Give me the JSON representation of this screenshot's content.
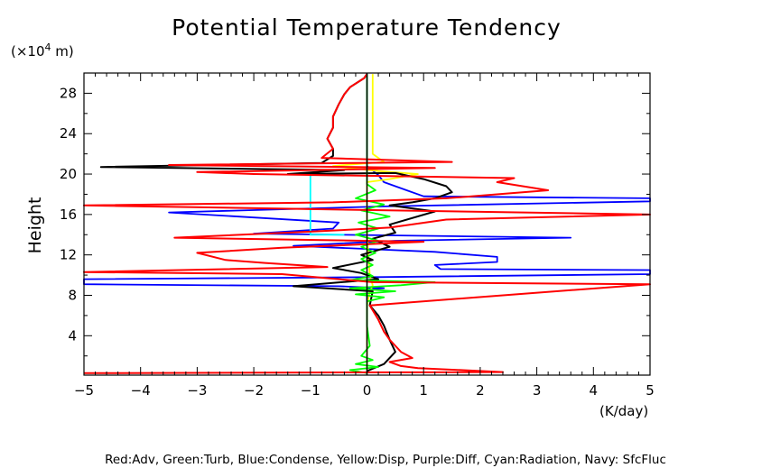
{
  "chart_data": {
    "type": "line",
    "title": "Potential Temperature Tendency",
    "ylabel": "Height",
    "y_unit": "(×10",
    "y_unit_exp": "4",
    "y_unit_tail": " m)",
    "xlabel": "(K/day)",
    "legend_text": "Red:Adv, Green:Turb, Blue:Condense, Yellow:Disp, Purple:Diff, Cyan:Radiation, Navy: SfcFluc",
    "xlim": [
      -5,
      5
    ],
    "ylim": [
      0.1,
      30.0
    ],
    "x_ticks": [
      "−5",
      "−4",
      "−3",
      "−2",
      "−1",
      "0",
      "1",
      "2",
      "3",
      "4",
      "5"
    ],
    "x_tick_values": [
      -5,
      -4,
      -3,
      -2,
      -1,
      0,
      1,
      2,
      3,
      4,
      5
    ],
    "y_ticks": [
      "4",
      "8",
      "12",
      "16",
      "20",
      "24",
      "28"
    ],
    "y_tick_values": [
      4,
      8,
      12,
      16,
      20,
      24,
      28
    ],
    "grid": false,
    "series": [
      {
        "color": "#0000ff",
        "points": [
          [
            0,
            0.3
          ],
          [
            0,
            5
          ],
          [
            0,
            8.6
          ],
          [
            0.3,
            8.7
          ],
          [
            -0.5,
            8.9
          ],
          [
            -5,
            9.1
          ],
          [
            -5,
            9.6
          ],
          [
            0.2,
            9.8
          ],
          [
            5,
            10.1
          ],
          [
            5,
            10.5
          ],
          [
            1.3,
            10.6
          ],
          [
            1.2,
            11.0
          ],
          [
            2.3,
            11.3
          ],
          [
            2.3,
            11.8
          ],
          [
            1.2,
            12.3
          ],
          [
            -1.3,
            12.9
          ],
          [
            0.5,
            13.4
          ],
          [
            3.6,
            13.7
          ],
          [
            -2.0,
            14.1
          ],
          [
            -0.6,
            14.6
          ],
          [
            -0.5,
            15.2
          ],
          [
            -3.5,
            16.2
          ],
          [
            0.3,
            16.8
          ],
          [
            5,
            17.3
          ],
          [
            5,
            17.6
          ],
          [
            1.0,
            17.8
          ],
          [
            0.7,
            18.4
          ],
          [
            0.3,
            19.2
          ],
          [
            0.2,
            19.9
          ],
          [
            0,
            20.8
          ],
          [
            0,
            29.9
          ]
        ]
      },
      {
        "color": "#00ffff",
        "points": [
          [
            -0.4,
            14.0
          ],
          [
            -1.0,
            14.0
          ],
          [
            -1.0,
            19.9
          ],
          [
            -0.4,
            19.9
          ]
        ]
      },
      {
        "color": "#ffff00",
        "points": [
          [
            0,
            0.5
          ],
          [
            0,
            7
          ],
          [
            0.05,
            8.3
          ],
          [
            0.1,
            9.0
          ],
          [
            0.05,
            10.0
          ],
          [
            0,
            14
          ],
          [
            0,
            19.2
          ],
          [
            0.4,
            19.5
          ],
          [
            0.9,
            20.0
          ],
          [
            0.2,
            20.3
          ],
          [
            -0.6,
            20.8
          ],
          [
            0.3,
            21.2
          ],
          [
            0.1,
            22.0
          ],
          [
            0.1,
            29.9
          ]
        ]
      },
      {
        "color": "#000000",
        "points": [
          [
            0,
            0.5
          ],
          [
            0.3,
            1.2
          ],
          [
            0.5,
            2.4
          ],
          [
            0.4,
            3.6
          ],
          [
            0.3,
            5.0
          ],
          [
            0.2,
            6.0
          ],
          [
            0.05,
            7.0
          ],
          [
            0.1,
            8.4
          ],
          [
            -1.3,
            8.9
          ],
          [
            0.2,
            9.6
          ],
          [
            -0.1,
            10.2
          ],
          [
            -0.6,
            10.7
          ],
          [
            0.1,
            11.5
          ],
          [
            -0.1,
            12.0
          ],
          [
            0.4,
            12.8
          ],
          [
            0.1,
            13.6
          ],
          [
            0.5,
            14.2
          ],
          [
            0.4,
            15.0
          ],
          [
            1.2,
            16.3
          ],
          [
            0.4,
            16.9
          ],
          [
            0.8,
            17.2
          ],
          [
            1.2,
            17.6
          ],
          [
            1.5,
            18.2
          ],
          [
            1.4,
            18.8
          ],
          [
            1.0,
            19.5
          ],
          [
            0.5,
            20.1
          ],
          [
            -1.4,
            20.0
          ],
          [
            -0.4,
            20.4
          ],
          [
            -4.7,
            20.7
          ],
          [
            -0.8,
            21.1
          ],
          [
            -0.6,
            21.8
          ],
          [
            -0.6,
            22.5
          ],
          [
            -0.7,
            23.5
          ],
          [
            -0.6,
            24.6
          ],
          [
            -0.6,
            25.7
          ],
          [
            -0.5,
            26.9
          ],
          [
            -0.4,
            27.9
          ],
          [
            -0.3,
            28.6
          ],
          [
            -0.05,
            29.5
          ],
          [
            0,
            29.9
          ]
        ]
      },
      {
        "color": "#00ff00",
        "points": [
          [
            0,
            0.3
          ],
          [
            -0.3,
            0.6
          ],
          [
            0.2,
            0.9
          ],
          [
            -0.2,
            1.2
          ],
          [
            0.1,
            1.6
          ],
          [
            -0.1,
            2.0
          ],
          [
            0.05,
            3
          ],
          [
            0,
            5
          ],
          [
            0,
            7.4
          ],
          [
            0.3,
            7.8
          ],
          [
            -0.2,
            8.1
          ],
          [
            0.5,
            8.4
          ],
          [
            -0.3,
            8.7
          ],
          [
            0.6,
            9.0
          ],
          [
            1.2,
            9.3
          ],
          [
            -0.3,
            9.5
          ],
          [
            0.1,
            9.9
          ],
          [
            -0.1,
            10.5
          ],
          [
            0.1,
            11.0
          ],
          [
            -0.1,
            11.6
          ],
          [
            0.15,
            12.2
          ],
          [
            -0.1,
            12.8
          ],
          [
            0.2,
            13.4
          ],
          [
            -0.2,
            14.0
          ],
          [
            0.2,
            14.6
          ],
          [
            -0.15,
            15.2
          ],
          [
            0.4,
            15.8
          ],
          [
            -0.1,
            16.4
          ],
          [
            0.3,
            17.0
          ],
          [
            -0.2,
            17.6
          ],
          [
            0.15,
            18.4
          ],
          [
            0,
            19.0
          ],
          [
            0,
            29.9
          ]
        ]
      },
      {
        "color": "#ff0000",
        "points": [
          [
            -5,
            0.3
          ],
          [
            2.4,
            0.4
          ],
          [
            0.9,
            0.8
          ],
          [
            0.6,
            1.0
          ],
          [
            0.4,
            1.4
          ],
          [
            0.8,
            1.8
          ],
          [
            0.6,
            2.4
          ],
          [
            0.5,
            3.0
          ],
          [
            0.4,
            3.6
          ],
          [
            0.3,
            4.4
          ],
          [
            0.2,
            5.6
          ],
          [
            0.05,
            7.0
          ],
          [
            5,
            9.1
          ],
          [
            0.1,
            9.3
          ],
          [
            -0.5,
            9.6
          ],
          [
            -1.5,
            10.1
          ],
          [
            -5,
            10.3
          ],
          [
            -0.7,
            10.8
          ],
          [
            -1.8,
            11.2
          ],
          [
            -2.5,
            11.5
          ],
          [
            -3.0,
            12.2
          ],
          [
            -1.5,
            12.7
          ],
          [
            1.0,
            13.3
          ],
          [
            -3.4,
            13.7
          ],
          [
            -1.0,
            14.3
          ],
          [
            0.4,
            14.7
          ],
          [
            1.4,
            15.5
          ],
          [
            5,
            16.0
          ],
          [
            -5,
            16.9
          ],
          [
            -0.6,
            17.2
          ],
          [
            1.4,
            17.6
          ],
          [
            3.2,
            18.4
          ],
          [
            2.3,
            19.2
          ],
          [
            2.6,
            19.6
          ],
          [
            -2.0,
            20.0
          ],
          [
            -3.0,
            20.2
          ],
          [
            1.2,
            20.6
          ],
          [
            -3.5,
            20.9
          ],
          [
            1.5,
            21.2
          ],
          [
            -0.8,
            21.6
          ],
          [
            -0.6,
            22.5
          ],
          [
            -0.7,
            23.5
          ],
          [
            -0.6,
            24.6
          ],
          [
            -0.6,
            25.7
          ],
          [
            -0.5,
            26.9
          ],
          [
            -0.4,
            27.9
          ],
          [
            -0.3,
            28.6
          ],
          [
            -0.05,
            29.5
          ],
          [
            0,
            29.9
          ]
        ]
      }
    ]
  }
}
